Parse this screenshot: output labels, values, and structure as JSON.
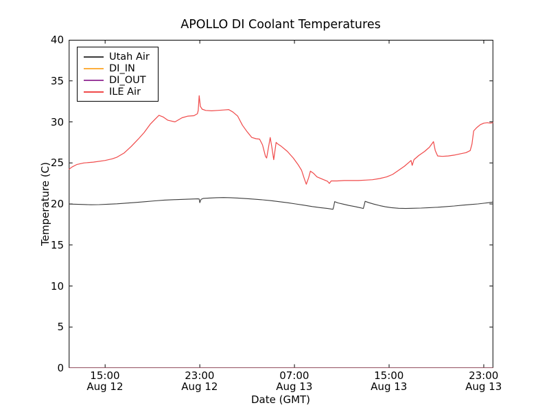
{
  "chart_data": {
    "type": "line",
    "title": "APOLLO DI Coolant Temperatures",
    "xlabel": "Date (GMT)",
    "ylabel": "Temperature (C)",
    "x_unit": "hours since Aug 12 00:00 GMT",
    "xlim": [
      11.93,
      47.8
    ],
    "ylim": [
      0,
      40
    ],
    "grid": false,
    "legend_position": "upper left",
    "y_ticks": [
      0,
      5,
      10,
      15,
      20,
      25,
      30,
      35,
      40
    ],
    "x_ticks": [
      15,
      23,
      31,
      39,
      47
    ],
    "x_tick_labels": [
      {
        "time": "15:00",
        "date": "Aug 12"
      },
      {
        "time": "23:00",
        "date": "Aug 12"
      },
      {
        "time": "07:00",
        "date": "Aug 13"
      },
      {
        "time": "15:00",
        "date": "Aug 13"
      },
      {
        "time": "23:00",
        "date": "Aug 13"
      }
    ],
    "series": [
      {
        "name": "Utah Air",
        "color": "#3a3a3a",
        "opacity": 1,
        "data": [
          [
            11.93,
            19.98
          ],
          [
            12.5,
            19.97
          ],
          [
            13.2,
            19.93
          ],
          [
            13.8,
            19.9
          ],
          [
            14.5,
            19.92
          ],
          [
            15.2,
            19.97
          ],
          [
            16.0,
            20.02
          ],
          [
            16.8,
            20.1
          ],
          [
            17.6,
            20.18
          ],
          [
            18.4,
            20.28
          ],
          [
            19.2,
            20.38
          ],
          [
            20.0,
            20.47
          ],
          [
            20.8,
            20.52
          ],
          [
            21.6,
            20.56
          ],
          [
            22.4,
            20.6
          ],
          [
            22.85,
            20.62
          ],
          [
            22.95,
            20.6
          ],
          [
            23.0,
            20.15
          ],
          [
            23.1,
            20.55
          ],
          [
            23.3,
            20.68
          ],
          [
            23.8,
            20.72
          ],
          [
            24.4,
            20.76
          ],
          [
            25.0,
            20.78
          ],
          [
            25.6,
            20.76
          ],
          [
            26.2,
            20.72
          ],
          [
            26.9,
            20.65
          ],
          [
            27.6,
            20.58
          ],
          [
            28.3,
            20.5
          ],
          [
            29.0,
            20.4
          ],
          [
            29.7,
            20.28
          ],
          [
            30.4,
            20.15
          ],
          [
            31.1,
            20.0
          ],
          [
            31.8,
            19.85
          ],
          [
            32.5,
            19.68
          ],
          [
            33.2,
            19.55
          ],
          [
            33.8,
            19.45
          ],
          [
            34.25,
            19.35
          ],
          [
            34.32,
            19.7
          ],
          [
            34.4,
            20.28
          ],
          [
            34.7,
            20.12
          ],
          [
            35.1,
            19.98
          ],
          [
            35.6,
            19.82
          ],
          [
            36.1,
            19.68
          ],
          [
            36.6,
            19.52
          ],
          [
            36.82,
            19.45
          ],
          [
            36.9,
            19.9
          ],
          [
            36.97,
            20.32
          ],
          [
            37.3,
            20.15
          ],
          [
            37.7,
            19.98
          ],
          [
            38.2,
            19.8
          ],
          [
            38.7,
            19.65
          ],
          [
            39.2,
            19.55
          ],
          [
            39.8,
            19.47
          ],
          [
            40.4,
            19.45
          ],
          [
            41.0,
            19.47
          ],
          [
            41.7,
            19.5
          ],
          [
            42.4,
            19.55
          ],
          [
            43.1,
            19.6
          ],
          [
            43.8,
            19.67
          ],
          [
            44.5,
            19.75
          ],
          [
            45.2,
            19.85
          ],
          [
            45.9,
            19.93
          ],
          [
            46.5,
            20.0
          ],
          [
            47.0,
            20.08
          ],
          [
            47.4,
            20.15
          ],
          [
            47.7,
            20.22
          ],
          [
            47.8,
            20.25
          ]
        ]
      },
      {
        "name": "DI_IN",
        "color": "#fdae3c",
        "opacity": 0.55,
        "data": [
          [
            11.93,
            0
          ],
          [
            47.8,
            0
          ]
        ]
      },
      {
        "name": "DI_OUT",
        "color": "#9a3d9c",
        "opacity": 0.5,
        "data": [
          [
            11.93,
            0
          ],
          [
            47.8,
            0
          ]
        ]
      },
      {
        "name": "ILE Air",
        "color": "#f04848",
        "opacity": 1,
        "data": [
          [
            11.93,
            24.2
          ],
          [
            12.2,
            24.5
          ],
          [
            12.6,
            24.8
          ],
          [
            13.2,
            25.0
          ],
          [
            14.0,
            25.1
          ],
          [
            15.0,
            25.3
          ],
          [
            15.6,
            25.5
          ],
          [
            16.0,
            25.7
          ],
          [
            16.6,
            26.2
          ],
          [
            17.2,
            27.0
          ],
          [
            17.8,
            27.9
          ],
          [
            18.3,
            28.7
          ],
          [
            18.8,
            29.7
          ],
          [
            19.2,
            30.3
          ],
          [
            19.55,
            30.8
          ],
          [
            19.9,
            30.6
          ],
          [
            20.3,
            30.2
          ],
          [
            20.9,
            30.0
          ],
          [
            21.5,
            30.5
          ],
          [
            22.0,
            30.7
          ],
          [
            22.5,
            30.75
          ],
          [
            22.8,
            31.0
          ],
          [
            22.87,
            31.4
          ],
          [
            22.95,
            33.2
          ],
          [
            23.05,
            31.9
          ],
          [
            23.2,
            31.55
          ],
          [
            23.5,
            31.4
          ],
          [
            24.0,
            31.35
          ],
          [
            24.5,
            31.4
          ],
          [
            25.0,
            31.45
          ],
          [
            25.45,
            31.5
          ],
          [
            25.8,
            31.2
          ],
          [
            26.2,
            30.7
          ],
          [
            26.6,
            29.6
          ],
          [
            27.0,
            28.8
          ],
          [
            27.4,
            28.1
          ],
          [
            27.75,
            27.95
          ],
          [
            28.05,
            27.9
          ],
          [
            28.3,
            27.2
          ],
          [
            28.55,
            25.8
          ],
          [
            28.65,
            25.6
          ],
          [
            28.95,
            28.1
          ],
          [
            29.1,
            26.8
          ],
          [
            29.25,
            25.4
          ],
          [
            29.45,
            27.5
          ],
          [
            29.6,
            27.3
          ],
          [
            29.9,
            27.0
          ],
          [
            30.4,
            26.4
          ],
          [
            30.9,
            25.6
          ],
          [
            31.3,
            24.8
          ],
          [
            31.6,
            24.1
          ],
          [
            31.85,
            23.0
          ],
          [
            32.0,
            22.4
          ],
          [
            32.2,
            23.2
          ],
          [
            32.35,
            24.0
          ],
          [
            32.6,
            23.75
          ],
          [
            32.9,
            23.3
          ],
          [
            33.4,
            23.0
          ],
          [
            33.8,
            22.75
          ],
          [
            33.95,
            22.5
          ],
          [
            34.1,
            22.8
          ],
          [
            34.6,
            22.8
          ],
          [
            35.2,
            22.85
          ],
          [
            35.8,
            22.85
          ],
          [
            36.4,
            22.85
          ],
          [
            37.0,
            22.9
          ],
          [
            37.6,
            22.95
          ],
          [
            38.2,
            23.1
          ],
          [
            38.8,
            23.3
          ],
          [
            39.3,
            23.6
          ],
          [
            39.8,
            24.1
          ],
          [
            40.3,
            24.6
          ],
          [
            40.7,
            25.1
          ],
          [
            40.85,
            25.3
          ],
          [
            40.95,
            24.7
          ],
          [
            41.1,
            25.4
          ],
          [
            41.5,
            25.9
          ],
          [
            42.0,
            26.4
          ],
          [
            42.4,
            26.9
          ],
          [
            42.65,
            27.4
          ],
          [
            42.75,
            27.6
          ],
          [
            42.9,
            26.5
          ],
          [
            43.1,
            25.85
          ],
          [
            43.5,
            25.8
          ],
          [
            44.0,
            25.85
          ],
          [
            44.5,
            25.95
          ],
          [
            45.0,
            26.1
          ],
          [
            45.5,
            26.25
          ],
          [
            45.85,
            26.5
          ],
          [
            46.0,
            27.3
          ],
          [
            46.15,
            28.9
          ],
          [
            46.4,
            29.3
          ],
          [
            46.7,
            29.65
          ],
          [
            47.0,
            29.85
          ],
          [
            47.3,
            29.9
          ],
          [
            47.55,
            29.85
          ],
          [
            47.8,
            29.9
          ]
        ]
      }
    ]
  }
}
